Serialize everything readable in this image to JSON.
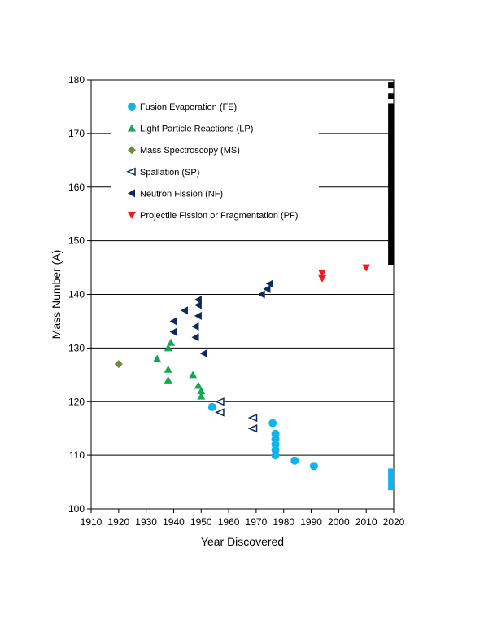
{
  "chart_data": {
    "type": "scatter",
    "xlabel": "Year Discovered",
    "ylabel": "Mass Number (A)",
    "xlim": [
      1910,
      2020
    ],
    "ylim": [
      100,
      180
    ],
    "x_ticks": [
      "1910",
      "1920",
      "1930",
      "1940",
      "1950",
      "1960",
      "1970",
      "1980",
      "1990",
      "2000",
      "2010",
      "2020"
    ],
    "y_ticks": [
      "100",
      "110",
      "120",
      "130",
      "140",
      "150",
      "160",
      "170",
      "180"
    ],
    "grid": "horizontal",
    "legend_position": "top-left",
    "series": [
      {
        "name": "Fusion Evaporation (FE)",
        "marker": "circle",
        "color": "#11b4ea",
        "points": [
          [
            1954,
            119
          ],
          [
            1976,
            116
          ],
          [
            1977,
            114
          ],
          [
            1977,
            113
          ],
          [
            1977,
            112
          ],
          [
            1977,
            111
          ],
          [
            1977,
            110
          ],
          [
            1984,
            109
          ],
          [
            1991,
            108
          ]
        ]
      },
      {
        "name": "Light Particle Reactions (LP)",
        "marker": "triangle-up",
        "color": "#13a851",
        "points": [
          [
            1934,
            128
          ],
          [
            1938,
            130
          ],
          [
            1939,
            131
          ],
          [
            1938,
            126
          ],
          [
            1938,
            124
          ],
          [
            1947,
            125
          ],
          [
            1949,
            123
          ],
          [
            1950,
            122
          ],
          [
            1950,
            121
          ]
        ]
      },
      {
        "name": "Mass Spectroscopy (MS)",
        "marker": "diamond",
        "color": "#6e8c32",
        "points": [
          [
            1920,
            127
          ]
        ]
      },
      {
        "name": "Spallation (SP)",
        "marker": "triangle-left-open",
        "color": "#0d2a5e",
        "points": [
          [
            1957,
            120
          ],
          [
            1957,
            118
          ],
          [
            1969,
            117
          ],
          [
            1969,
            115
          ]
        ]
      },
      {
        "name": "Neutron Fission (NF)",
        "marker": "triangle-left",
        "color": "#0d2a5e",
        "points": [
          [
            1940,
            135
          ],
          [
            1940,
            133
          ],
          [
            1944,
            137
          ],
          [
            1949,
            139
          ],
          [
            1949,
            138
          ],
          [
            1949,
            136
          ],
          [
            1948,
            134
          ],
          [
            1948,
            132
          ],
          [
            1951,
            129
          ],
          [
            1972,
            140
          ],
          [
            1974,
            141
          ],
          [
            1975,
            142
          ]
        ]
      },
      {
        "name": "Projectile Fission or Fragmentation (PF)",
        "marker": "triangle-down",
        "color": "#ee1c1c",
        "points": [
          [
            1994,
            144
          ],
          [
            1994,
            143
          ],
          [
            2010,
            145
          ]
        ]
      },
      {
        "name": "",
        "marker": "square",
        "color": "#000000",
        "points": [
          [
            2019,
            146
          ],
          [
            2019,
            147
          ],
          [
            2019,
            148
          ],
          [
            2019,
            149
          ],
          [
            2019,
            150
          ],
          [
            2019,
            151
          ],
          [
            2019,
            152
          ],
          [
            2019,
            153
          ],
          [
            2019,
            154
          ],
          [
            2019,
            155
          ],
          [
            2019,
            156
          ],
          [
            2019,
            157
          ],
          [
            2019,
            158
          ],
          [
            2019,
            159
          ],
          [
            2019,
            160
          ],
          [
            2019,
            161
          ],
          [
            2019,
            162
          ],
          [
            2019,
            163
          ],
          [
            2019,
            164
          ],
          [
            2019,
            165
          ],
          [
            2019,
            166
          ],
          [
            2019,
            167
          ],
          [
            2019,
            168
          ],
          [
            2019,
            169
          ],
          [
            2019,
            170
          ],
          [
            2019,
            171
          ],
          [
            2019,
            172
          ],
          [
            2019,
            173
          ],
          [
            2019,
            174
          ],
          [
            2019,
            175
          ],
          [
            2019,
            177
          ],
          [
            2019,
            179
          ]
        ]
      },
      {
        "name": "",
        "marker": "square",
        "color": "#11b4ea",
        "points": [
          [
            2019,
            104
          ],
          [
            2019,
            105
          ],
          [
            2019,
            106
          ],
          [
            2019,
            107
          ]
        ]
      }
    ]
  }
}
